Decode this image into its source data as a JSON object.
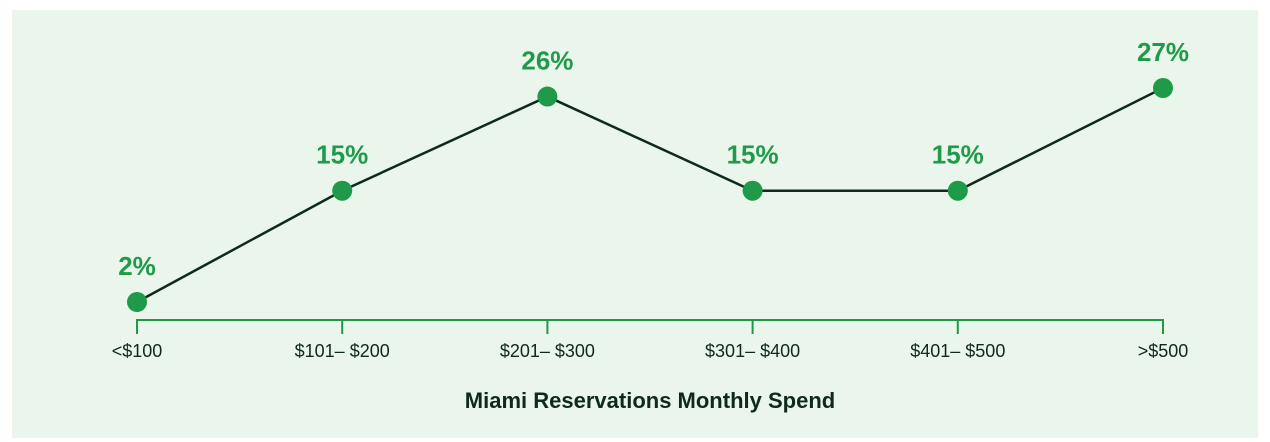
{
  "chart_data": {
    "type": "line",
    "x_label": "Miami Reservations Monthly Spend",
    "categories": [
      "<$100",
      "$101– $200",
      "$201– $300",
      "$301– $400",
      "$401– $500",
      ">$500"
    ],
    "values": [
      2,
      15,
      26,
      15,
      15,
      27
    ],
    "value_labels": [
      "2%",
      "15%",
      "26%",
      "15%",
      "15%",
      "27%"
    ],
    "color": "#1f9a48",
    "line_color": "#0e2a1a"
  }
}
